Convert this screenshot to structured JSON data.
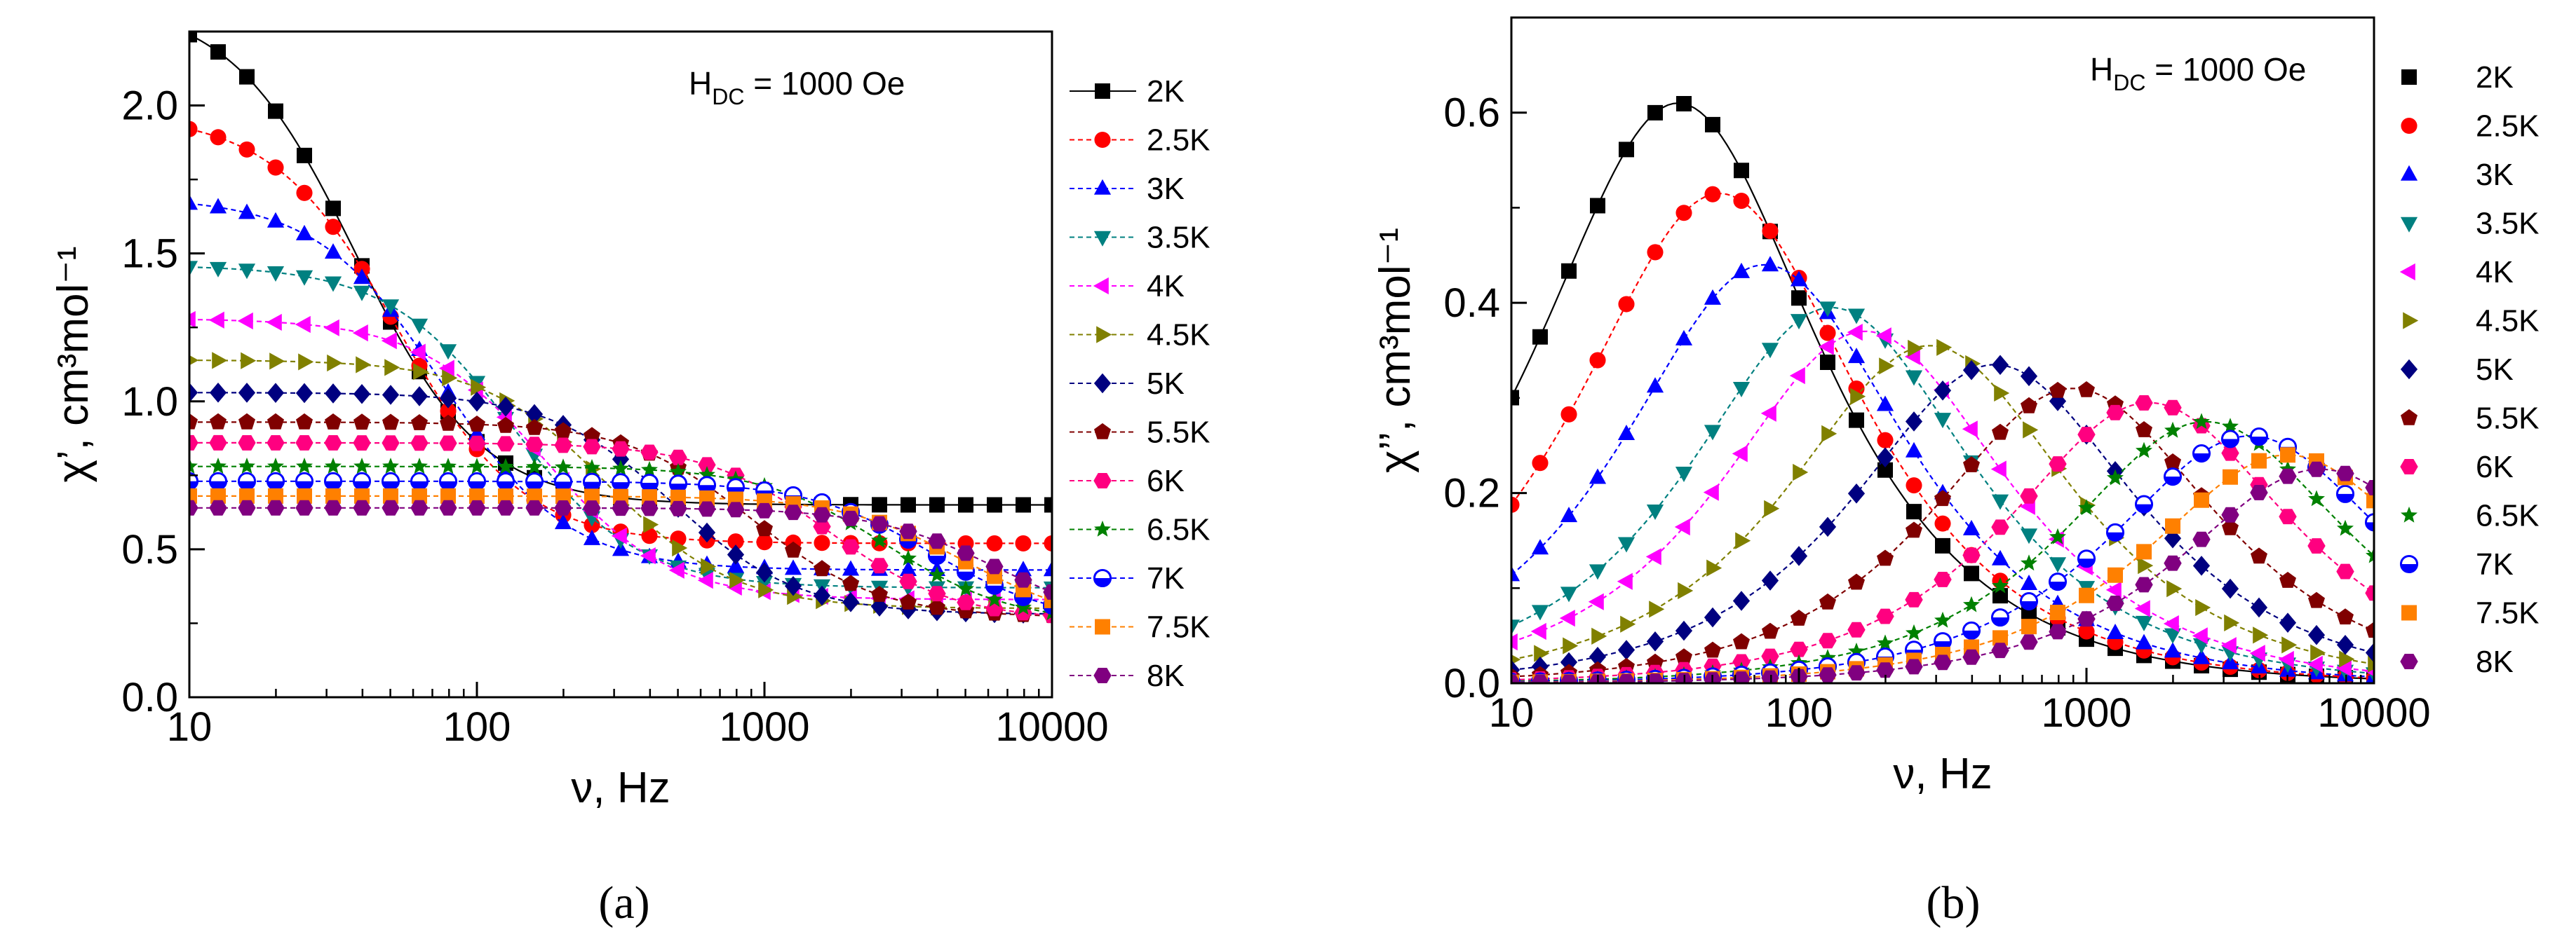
{
  "chart_data": [
    {
      "type": "line",
      "panel": "a",
      "caption": "(a)",
      "xlabel": "ν, Hz",
      "ylabel": "χ’, cm³mol⁻¹",
      "xscale": "log",
      "xlim": [
        10,
        10000
      ],
      "ylim": [
        0.0,
        2.25
      ],
      "xticks": [
        10,
        100,
        1000,
        10000
      ],
      "xtick_labels": [
        "10",
        "100",
        "1000",
        "10000"
      ],
      "yticks": [
        0.0,
        0.5,
        1.0,
        1.5,
        2.0
      ],
      "ytick_labels": [
        "0.0",
        "0.5",
        "1.0",
        "1.5",
        "2.0"
      ],
      "annotation": {
        "main": "H",
        "sub": "DC",
        "rest": " = 1000 Oe"
      },
      "legend_position": "right",
      "model": "chi_s + (chi_t - chi_s) / (1 + (2*pi*nu*tau)^2)",
      "series": [
        {
          "name": "2K",
          "chi_t": 2.35,
          "chi_s": 0.65,
          "tau": 0.0042
        },
        {
          "name": "2.5K",
          "chi_t": 1.97,
          "chi_s": 0.52,
          "tau": 0.003
        },
        {
          "name": "3K",
          "chi_t": 1.69,
          "chi_s": 0.43,
          "tau": 0.0021
        },
        {
          "name": "3.5K",
          "chi_t": 1.46,
          "chi_s": 0.37,
          "tau": 0.0012
        },
        {
          "name": "4K",
          "chi_t": 1.28,
          "chi_s": 0.33,
          "tau": 0.00093
        },
        {
          "name": "4.5K",
          "chi_t": 1.14,
          "chi_s": 0.3,
          "tau": 0.00056
        },
        {
          "name": "5K",
          "chi_t": 1.03,
          "chi_s": 0.28,
          "tau": 0.00033
        },
        {
          "name": "5.5K",
          "chi_t": 0.93,
          "chi_s": 0.27,
          "tau": 0.000175
        },
        {
          "name": "6K",
          "chi_t": 0.86,
          "chi_s": 0.26,
          "tau": 9.5e-05
        },
        {
          "name": "6.5K",
          "chi_t": 0.78,
          "chi_s": 0.25,
          "tau": 6e-05
        },
        {
          "name": "7K",
          "chi_t": 0.73,
          "chi_s": 0.25,
          "tau": 4.2e-05
        },
        {
          "name": "7.5K",
          "chi_t": 0.68,
          "chi_s": 0.24,
          "tau": 3.2e-05
        },
        {
          "name": "8K",
          "chi_t": 0.64,
          "chi_s": 0.24,
          "tau": 2.5e-05
        }
      ]
    },
    {
      "type": "line",
      "panel": "b",
      "caption": "(b)",
      "xlabel": "ν, Hz",
      "ylabel": "χ’’, cm³mol⁻¹",
      "xscale": "log",
      "xlim": [
        10,
        10000
      ],
      "ylim": [
        0.0,
        0.7
      ],
      "xticks": [
        10,
        100,
        1000,
        10000
      ],
      "xtick_labels": [
        "10",
        "100",
        "1000",
        "10000"
      ],
      "yticks": [
        0.0,
        0.2,
        0.4,
        0.6
      ],
      "ytick_labels": [
        "0.0",
        "0.2",
        "0.4",
        "0.6"
      ],
      "annotation": {
        "main": "H",
        "sub": "DC",
        "rest": " = 1000 Oe"
      },
      "legend_position": "right",
      "model": "peak * 2*w / (1 + w^2), w = nu / nu_peak",
      "series": [
        {
          "name": "2K",
          "peak_nu": 38,
          "peak_chi": 0.61
        },
        {
          "name": "2.5K",
          "peak_nu": 53,
          "peak_chi": 0.515
        },
        {
          "name": "3K",
          "peak_nu": 76,
          "peak_chi": 0.44
        },
        {
          "name": "3.5K",
          "peak_nu": 130,
          "peak_chi": 0.395
        },
        {
          "name": "4K",
          "peak_nu": 170,
          "peak_chi": 0.37
        },
        {
          "name": "4.5K",
          "peak_nu": 285,
          "peak_chi": 0.355
        },
        {
          "name": "5K",
          "peak_nu": 480,
          "peak_chi": 0.335
        },
        {
          "name": "5.5K",
          "peak_nu": 900,
          "peak_chi": 0.31
        },
        {
          "name": "6K",
          "peak_nu": 1650,
          "peak_chi": 0.295
        },
        {
          "name": "6.5K",
          "peak_nu": 2600,
          "peak_chi": 0.275
        },
        {
          "name": "7K",
          "peak_nu": 3700,
          "peak_chi": 0.26
        },
        {
          "name": "7.5K",
          "peak_nu": 5000,
          "peak_chi": 0.24
        },
        {
          "name": "8K",
          "peak_nu": 6500,
          "peak_chi": 0.225
        }
      ]
    }
  ],
  "styles": [
    {
      "color": "#000000",
      "marker": "square"
    },
    {
      "color": "#ff0000",
      "marker": "circle"
    },
    {
      "color": "#0000ff",
      "marker": "triangle-up"
    },
    {
      "color": "#008080",
      "marker": "triangle-down"
    },
    {
      "color": "#ff00ff",
      "marker": "triangle-left"
    },
    {
      "color": "#808000",
      "marker": "triangle-right"
    },
    {
      "color": "#000080",
      "marker": "diamond"
    },
    {
      "color": "#800000",
      "marker": "pentagon"
    },
    {
      "color": "#ff0080",
      "marker": "hexagon"
    },
    {
      "color": "#008000",
      "marker": "star"
    },
    {
      "color": "#0000ff",
      "marker": "half-circle"
    },
    {
      "color": "#ff8000",
      "marker": "square"
    },
    {
      "color": "#800080",
      "marker": "hexagon"
    }
  ]
}
